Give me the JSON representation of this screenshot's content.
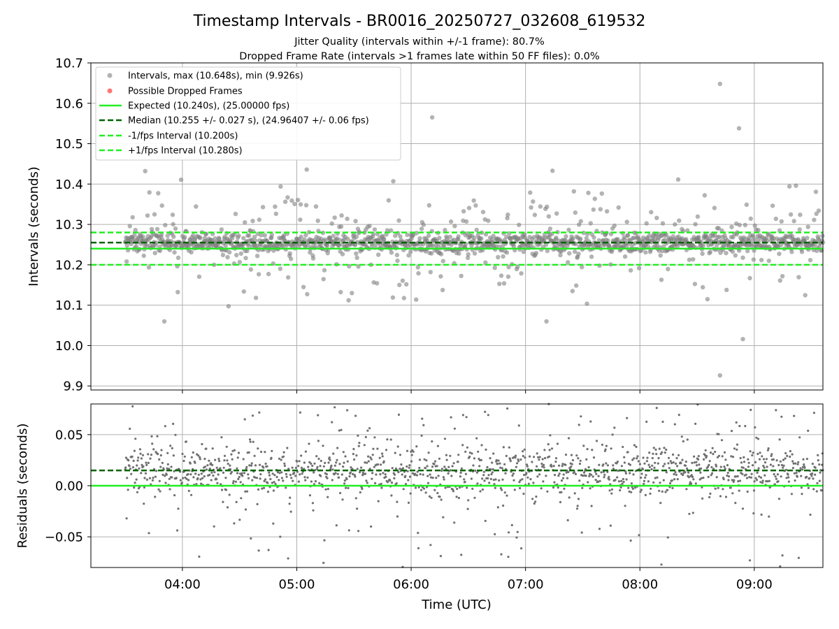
{
  "figure": {
    "title": "Timestamp Intervals - BR0016_20250727_032608_619532",
    "subtitle_1": "Jitter Quality (intervals within +/-1 frame): 80.7%",
    "subtitle_2": "Dropped Frame Rate (intervals >1 frames late within 50 FF files): 0.0%",
    "xlabel": "Time (UTC)"
  },
  "colors": {
    "points_top": "#808080",
    "points_bottom": "#707070",
    "dropped": "#ff6666",
    "expected": "#22ee22",
    "median": "#006400",
    "interval_lines": "#22ee22",
    "grid": "#b0b0b0"
  },
  "chart_data": [
    {
      "type": "scatter",
      "ylabel": "Intervals (seconds)",
      "x_range": [
        "03:12",
        "09:36"
      ],
      "x_ticks": [
        "04:00",
        "05:00",
        "06:00",
        "07:00",
        "08:00",
        "09:00"
      ],
      "ylim": [
        9.89,
        10.7
      ],
      "y_ticks": [
        "9.9",
        "10.0",
        "10.1",
        "10.2",
        "10.3",
        "10.4",
        "10.5",
        "10.6",
        "10.7"
      ],
      "grid": true,
      "legend_position": "upper-left",
      "legend": [
        "Intervals, max (10.648s), min (9.926s)",
        "Possible Dropped Frames",
        "Expected (10.240s), (25.00000 fps)",
        "Median (10.255 +/- 0.027 s), (24.96407 +/- 0.06 fps)",
        "-1/fps Interval (10.200s)",
        "+1/fps Interval (10.280s)"
      ],
      "reference_lines": {
        "expected": 10.24,
        "median": 10.255,
        "minus_one_fps": 10.2,
        "plus_one_fps": 10.28
      },
      "time_span": [
        "03:30",
        "09:36"
      ],
      "series": [
        {
          "name": "Intervals, max (10.648s), min (9.926s)",
          "center": 10.255,
          "spread": 0.027,
          "max": 10.648,
          "min": 9.926,
          "extremes": [
            [
              "08:42",
              10.648
            ],
            [
              "08:42",
              9.926
            ],
            [
              "08:52",
              10.538
            ],
            [
              "06:11",
              10.565
            ],
            [
              "08:54",
              10.016
            ]
          ]
        },
        {
          "name": "Possible Dropped Frames",
          "values": []
        }
      ]
    },
    {
      "type": "scatter",
      "ylabel": "Residuals (seconds)",
      "x_range": [
        "03:12",
        "09:36"
      ],
      "x_ticks": [
        "04:00",
        "05:00",
        "06:00",
        "07:00",
        "08:00",
        "09:00"
      ],
      "ylim": [
        -0.08,
        0.08
      ],
      "y_ticks": [
        "−0.05",
        "0.00",
        "0.05"
      ],
      "grid": true,
      "reference_lines": {
        "zero": 0.0,
        "median_offset": 0.015
      },
      "time_span": [
        "03:30",
        "09:36"
      ],
      "series": [
        {
          "center": 0.015,
          "spread": 0.027
        }
      ]
    }
  ]
}
